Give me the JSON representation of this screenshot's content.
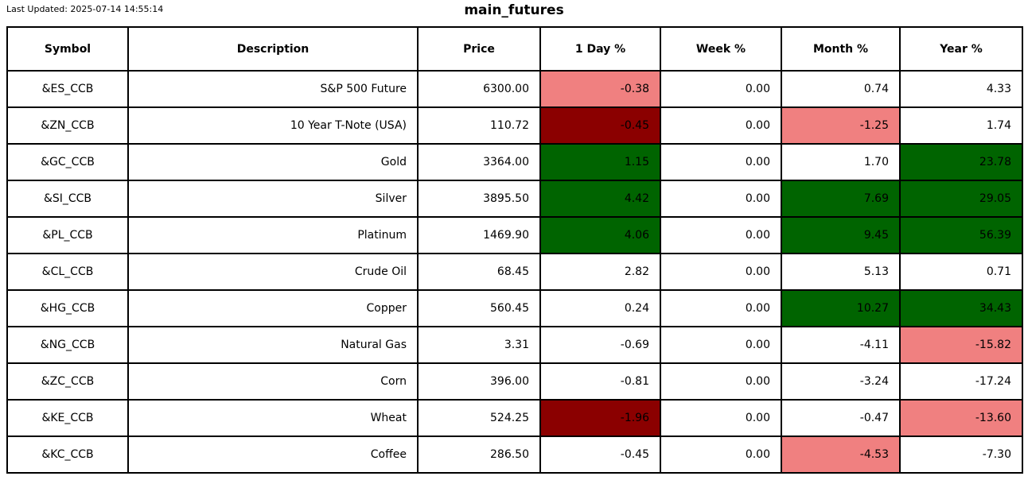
{
  "meta": {
    "last_updated": "Last Updated: 2025-07-14 14:55:14"
  },
  "colors": {
    "gain_strong": "#006400",
    "loss_mild": "#f08080",
    "loss_strong": "#8b0000",
    "neutral": "#ffffff",
    "border": "#000000"
  },
  "chart_data": {
    "type": "table",
    "title": "main_futures",
    "columns": [
      "Symbol",
      "Description",
      "Price",
      "1 Day %",
      "Week %",
      "Month %",
      "Year %"
    ],
    "rows": [
      {
        "cells": [
          {
            "text": "&ES_CCB"
          },
          {
            "text": "S&P 500 Future"
          },
          {
            "text": "6300.00"
          },
          {
            "text": "-0.38",
            "bg": "#f08080"
          },
          {
            "text": "0.00"
          },
          {
            "text": "0.74"
          },
          {
            "text": "4.33"
          }
        ]
      },
      {
        "cells": [
          {
            "text": "&ZN_CCB"
          },
          {
            "text": "10 Year T-Note (USA)"
          },
          {
            "text": "110.72"
          },
          {
            "text": "-0.45",
            "bg": "#8b0000"
          },
          {
            "text": "0.00"
          },
          {
            "text": "-1.25",
            "bg": "#f08080"
          },
          {
            "text": "1.74"
          }
        ]
      },
      {
        "cells": [
          {
            "text": "&GC_CCB"
          },
          {
            "text": "Gold"
          },
          {
            "text": "3364.00"
          },
          {
            "text": "1.15",
            "bg": "#006400"
          },
          {
            "text": "0.00"
          },
          {
            "text": "1.70"
          },
          {
            "text": "23.78",
            "bg": "#006400"
          }
        ]
      },
      {
        "cells": [
          {
            "text": "&SI_CCB"
          },
          {
            "text": "Silver"
          },
          {
            "text": "3895.50"
          },
          {
            "text": "4.42",
            "bg": "#006400"
          },
          {
            "text": "0.00"
          },
          {
            "text": "7.69",
            "bg": "#006400"
          },
          {
            "text": "29.05",
            "bg": "#006400"
          }
        ]
      },
      {
        "cells": [
          {
            "text": "&PL_CCB"
          },
          {
            "text": "Platinum"
          },
          {
            "text": "1469.90"
          },
          {
            "text": "4.06",
            "bg": "#006400"
          },
          {
            "text": "0.00"
          },
          {
            "text": "9.45",
            "bg": "#006400"
          },
          {
            "text": "56.39",
            "bg": "#006400"
          }
        ]
      },
      {
        "cells": [
          {
            "text": "&CL_CCB"
          },
          {
            "text": "Crude Oil"
          },
          {
            "text": "68.45"
          },
          {
            "text": "2.82"
          },
          {
            "text": "0.00"
          },
          {
            "text": "5.13"
          },
          {
            "text": "0.71"
          }
        ]
      },
      {
        "cells": [
          {
            "text": "&HG_CCB"
          },
          {
            "text": "Copper"
          },
          {
            "text": "560.45"
          },
          {
            "text": "0.24"
          },
          {
            "text": "0.00"
          },
          {
            "text": "10.27",
            "bg": "#006400"
          },
          {
            "text": "34.43",
            "bg": "#006400"
          }
        ]
      },
      {
        "cells": [
          {
            "text": "&NG_CCB"
          },
          {
            "text": "Natural Gas"
          },
          {
            "text": "3.31"
          },
          {
            "text": "-0.69"
          },
          {
            "text": "0.00"
          },
          {
            "text": "-4.11"
          },
          {
            "text": "-15.82",
            "bg": "#f08080"
          }
        ]
      },
      {
        "cells": [
          {
            "text": "&ZC_CCB"
          },
          {
            "text": "Corn"
          },
          {
            "text": "396.00"
          },
          {
            "text": "-0.81"
          },
          {
            "text": "0.00"
          },
          {
            "text": "-3.24"
          },
          {
            "text": "-17.24"
          }
        ]
      },
      {
        "cells": [
          {
            "text": "&KE_CCB"
          },
          {
            "text": "Wheat"
          },
          {
            "text": "524.25"
          },
          {
            "text": "-1.96",
            "bg": "#8b0000"
          },
          {
            "text": "0.00"
          },
          {
            "text": "-0.47"
          },
          {
            "text": "-13.60",
            "bg": "#f08080"
          }
        ]
      },
      {
        "cells": [
          {
            "text": "&KC_CCB"
          },
          {
            "text": "Coffee"
          },
          {
            "text": "286.50"
          },
          {
            "text": "-0.45"
          },
          {
            "text": "0.00"
          },
          {
            "text": "-4.53",
            "bg": "#f08080"
          },
          {
            "text": "-7.30"
          }
        ]
      }
    ]
  }
}
